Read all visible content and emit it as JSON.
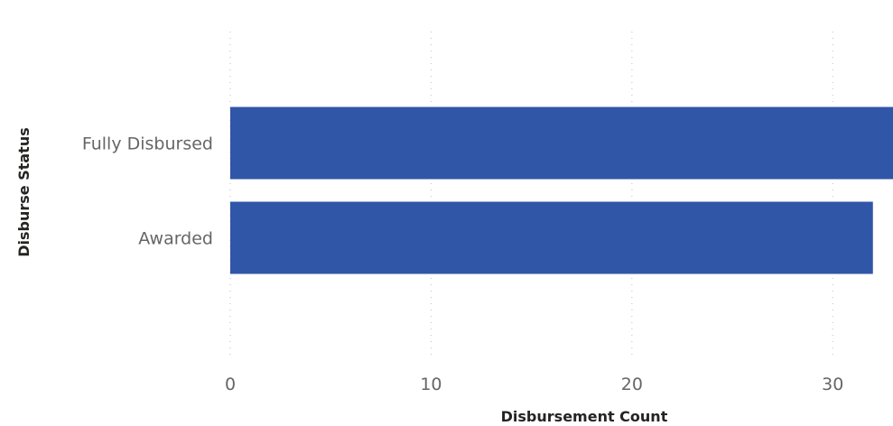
{
  "chart_data": {
    "type": "bar",
    "orientation": "horizontal",
    "categories": [
      "Fully Disbursed",
      "Awarded"
    ],
    "values": [
      33,
      32
    ],
    "xlabel": "Disbursement Count",
    "ylabel": "Disburse Status",
    "xlim": [
      0,
      33
    ],
    "xticks": [
      0,
      10,
      20,
      30
    ],
    "grid": true,
    "bar_color": "#3056a7"
  }
}
